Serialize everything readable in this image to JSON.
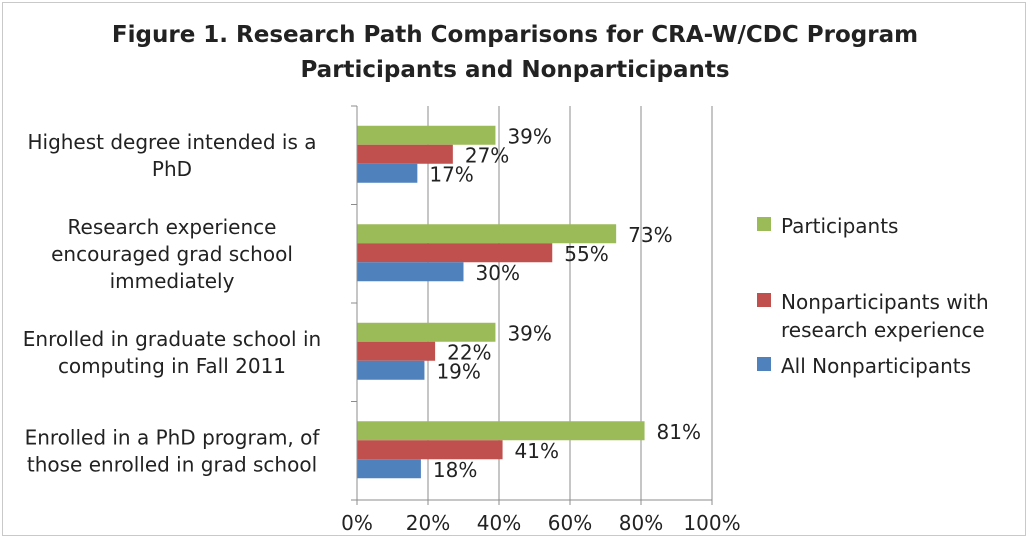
{
  "chart_data": {
    "type": "bar",
    "orientation": "horizontal",
    "title_lines": [
      "Figure 1. Research Path Comparisons for CRA-W/CDC Program",
      "Participants and Nonparticipants"
    ],
    "categories": [
      [
        "Highest degree intended is a",
        "PhD"
      ],
      [
        "Research experience",
        "encouraged grad school",
        "immediately"
      ],
      [
        "Enrolled in graduate school in",
        "computing in Fall 2011"
      ],
      [
        "Enrolled in a PhD program, of",
        "those enrolled in grad school"
      ]
    ],
    "series": [
      {
        "name": "Participants",
        "color": "#9bbb59",
        "values": [
          39,
          73,
          39,
          81
        ],
        "labels": [
          "39%",
          "73%",
          "39%",
          "81%"
        ]
      },
      {
        "name": "Nonparticipants with research experience",
        "legend_lines": [
          "Nonparticipants with",
          "research experience"
        ],
        "color": "#c0504d",
        "values": [
          27,
          55,
          22,
          41
        ],
        "labels": [
          "27%",
          "55%",
          "22%",
          "41%"
        ]
      },
      {
        "name": "All Nonparticipants",
        "color": "#4f81bd",
        "values": [
          17,
          30,
          19,
          18
        ],
        "labels": [
          "17%",
          "30%",
          "19%",
          "18%"
        ]
      }
    ],
    "xlim": [
      0,
      100
    ],
    "xticks": [
      0,
      20,
      40,
      60,
      80,
      100
    ],
    "xtick_labels": [
      "0%",
      "20%",
      "40%",
      "60%",
      "80%",
      "100%"
    ],
    "grid": true,
    "legend": "right"
  }
}
